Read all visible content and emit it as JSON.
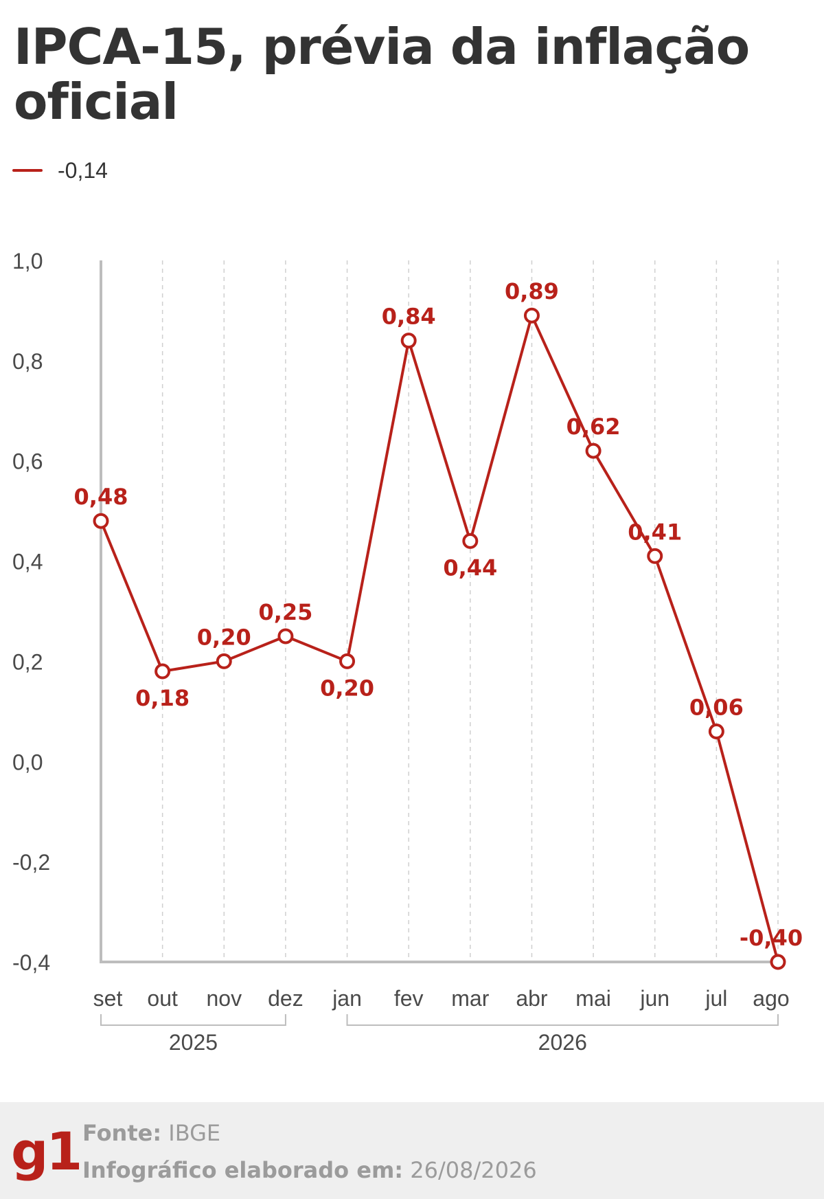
{
  "header": {
    "title": "IPCA-15, prévia da inflação oficial"
  },
  "legend": {
    "label": "-0,14"
  },
  "colors": {
    "series": "#b8211a",
    "text": "#333333",
    "axis": "#4a4a4a",
    "grid": "#cfcfcf",
    "footer_bg": "#efefef",
    "footer_text": "#9b9b9b"
  },
  "chart_data": {
    "type": "line",
    "title": "IPCA-15, prévia da inflação oficial",
    "xlabel": "",
    "ylabel": "",
    "categories": [
      "set",
      "out",
      "nov",
      "dez",
      "jan",
      "fev",
      "mar",
      "abr",
      "mai",
      "jun",
      "jul",
      "ago"
    ],
    "series": [
      {
        "name": "-0,14",
        "values": [
          0.48,
          0.18,
          0.2,
          0.25,
          0.2,
          0.84,
          0.44,
          0.89,
          0.62,
          0.41,
          0.06,
          -0.4
        ],
        "labels": [
          "0,48",
          "0,18",
          "0,20",
          "0,25",
          "0,20",
          "0,84",
          "0,44",
          "0,89",
          "0,62",
          "0,41",
          "0,06",
          "-0,40"
        ]
      }
    ],
    "ylim": [
      -0.4,
      1.0
    ],
    "yticks": [
      1.0,
      0.8,
      0.6,
      0.4,
      0.2,
      0.0,
      -0.2,
      -0.4
    ],
    "ytick_labels": [
      "1,0",
      "0,8",
      "0,6",
      "0,4",
      "0,2",
      "0,0",
      "-0,2",
      "-0,4"
    ],
    "year_groups": [
      {
        "label": "2025",
        "from": 0,
        "to": 3
      },
      {
        "label": "2026",
        "from": 4,
        "to": 11
      }
    ],
    "grid": true,
    "legend_position": "top-left"
  },
  "footer": {
    "logo": "g1",
    "source_label": "Fonte:",
    "source_value": "IBGE",
    "date_label": "Infográfico elaborado em:",
    "date_value": "26/08/2026"
  }
}
